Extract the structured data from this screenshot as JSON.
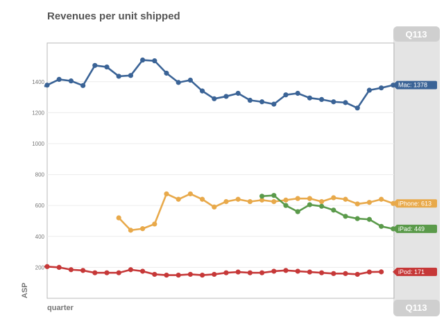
{
  "chart_data": {
    "type": "line",
    "title": "Revenues per unit shipped",
    "xlabel": "quarter",
    "ylabel": "ASP",
    "ylim": [
      0,
      1650
    ],
    "yticks": [
      200,
      400,
      600,
      800,
      1000,
      1200,
      1400
    ],
    "grid": true,
    "period_label": "Q113",
    "series": [
      {
        "name": "Mac",
        "color": "#3a6396",
        "end_label": "Mac: 1378",
        "start": 0,
        "continues_left": true,
        "values": [
          1378,
          1415,
          1405,
          1375,
          1505,
          1495,
          1435,
          1440,
          1540,
          1535,
          1455,
          1395,
          1410,
          1340,
          1290,
          1305,
          1325,
          1280,
          1270,
          1255,
          1315,
          1325,
          1295,
          1285,
          1270,
          1265,
          1230,
          1345,
          1360,
          1378
        ]
      },
      {
        "name": "iPhone",
        "color": "#e8a94a",
        "end_label": "iPhone: 613",
        "start": 6,
        "continues_left": false,
        "values": [
          520,
          440,
          450,
          480,
          675,
          640,
          675,
          640,
          590,
          625,
          640,
          625,
          635,
          625,
          635,
          645,
          645,
          625,
          650,
          640,
          610,
          620,
          640,
          613
        ]
      },
      {
        "name": "iPad",
        "color": "#5a9a4a",
        "end_label": "iPad: 449",
        "start": 18,
        "continues_left": false,
        "values": [
          660,
          665,
          600,
          560,
          605,
          595,
          570,
          530,
          515,
          510,
          465,
          449
        ]
      },
      {
        "name": "iPod",
        "color": "#c63838",
        "end_label": "iPod: 171",
        "start": 0,
        "continues_left": true,
        "values": [
          205,
          200,
          185,
          180,
          165,
          165,
          165,
          185,
          175,
          155,
          150,
          150,
          155,
          150,
          155,
          165,
          170,
          165,
          165,
          175,
          180,
          175,
          170,
          165,
          160,
          160,
          155,
          170,
          171
        ]
      }
    ]
  }
}
